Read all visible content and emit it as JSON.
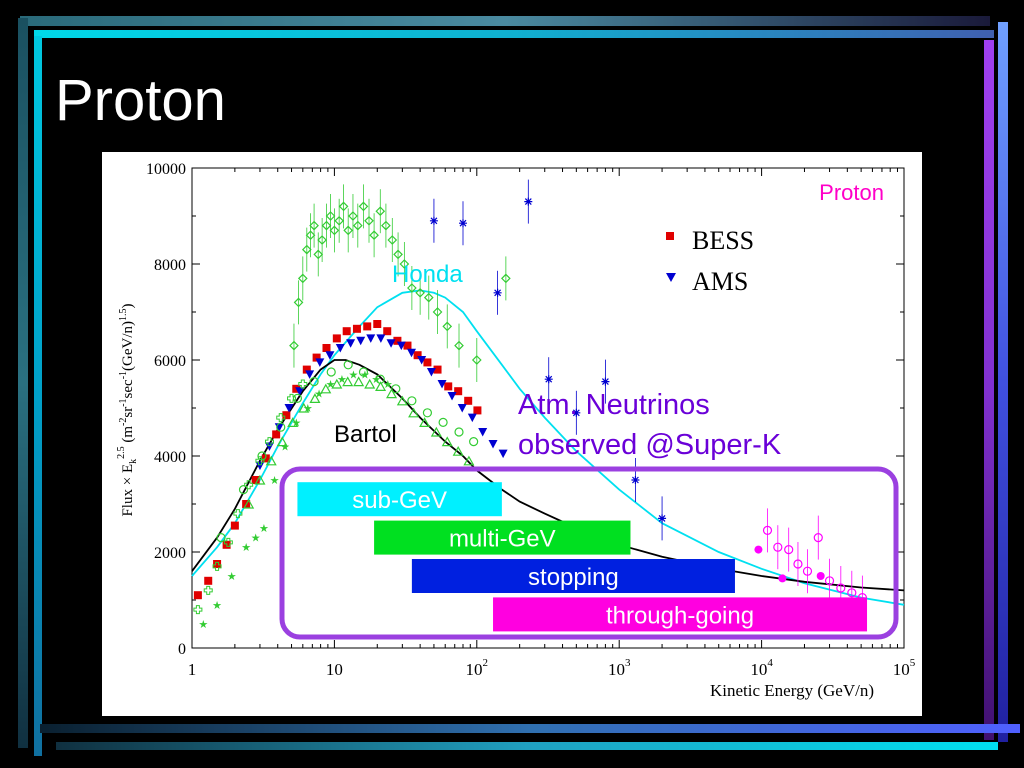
{
  "slide": {
    "title": "Proton"
  },
  "colors": {
    "background": "#000000",
    "accent_cyan": "#00e0ff",
    "accent_blue": "#5060ff",
    "accent_purple": "#8a2be2",
    "bess": "#e00000",
    "ams": "#0000d0",
    "other_data": "#33cc33",
    "high_energy_data": "#ff00ff",
    "honda": "#00e0f0",
    "bartol": "#000000",
    "box_border": "#9b40e0"
  },
  "chart_data": {
    "type": "scatter",
    "title": "Proton",
    "xlabel": "Kinetic Energy (GeV/n)",
    "ylabel": "Flux × E_k^2.5 (m^-2 sr^-1 sec^-1 (GeV/n)^1.5)",
    "x_scale": "log",
    "xlim": [
      1,
      100000
    ],
    "ylim": [
      0,
      10000
    ],
    "x_ticks": [
      {
        "value": 1,
        "base": "1",
        "exp": ""
      },
      {
        "value": 10,
        "base": "10",
        "exp": ""
      },
      {
        "value": 100,
        "base": "10",
        "exp": "2"
      },
      {
        "value": 1000,
        "base": "10",
        "exp": "3"
      },
      {
        "value": 10000,
        "base": "10",
        "exp": "4"
      },
      {
        "value": 100000,
        "base": "10",
        "exp": "5"
      }
    ],
    "y_ticks": [
      0,
      2000,
      4000,
      6000,
      8000,
      10000
    ],
    "legend": {
      "placement": "top-right",
      "entries": [
        {
          "name": "BESS",
          "marker": "square",
          "color": "#e00000"
        },
        {
          "name": "AMS",
          "marker": "triangle-down",
          "color": "#0000d0"
        }
      ]
    },
    "series": [
      {
        "name": "BESS",
        "marker": "square",
        "color": "#e00000",
        "x": [
          1.1,
          1.3,
          1.5,
          1.75,
          2.0,
          2.4,
          2.8,
          3.3,
          3.9,
          4.6,
          5.4,
          6.4,
          7.5,
          8.8,
          10.4,
          12.2,
          14.4,
          17,
          20,
          23.5,
          27.7,
          32.6,
          38.4,
          45,
          53,
          63,
          74,
          87,
          101
        ],
        "y": [
          1100,
          1400,
          1750,
          2150,
          2550,
          3000,
          3500,
          3950,
          4450,
          4850,
          5400,
          5800,
          6050,
          6250,
          6450,
          6600,
          6650,
          6700,
          6750,
          6600,
          6400,
          6300,
          6100,
          5950,
          5800,
          5450,
          5350,
          5150,
          4950
        ]
      },
      {
        "name": "AMS",
        "marker": "triangle-down",
        "color": "#0000d0",
        "x": [
          3.0,
          3.5,
          4.1,
          4.8,
          5.7,
          6.7,
          7.9,
          9.3,
          11,
          13,
          15.3,
          18,
          21.2,
          25,
          29.5,
          34.8,
          41,
          48,
          57,
          67,
          79,
          93,
          110,
          130,
          153
        ],
        "y": [
          3800,
          4200,
          4600,
          5000,
          5350,
          5700,
          5950,
          6100,
          6250,
          6350,
          6400,
          6450,
          6450,
          6350,
          6300,
          6150,
          6000,
          5750,
          5500,
          5250,
          5000,
          4800,
          4500,
          4250,
          4050
        ]
      },
      {
        "name": "",
        "marker": "diamond-open",
        "color": "#33cc33",
        "x": [
          5.2,
          5.6,
          6.0,
          6.4,
          6.8,
          7.2,
          7.7,
          8.2,
          8.8,
          9.4,
          10,
          10.8,
          11.6,
          12.5,
          13.5,
          14.6,
          16,
          17.5,
          19,
          21,
          23,
          25.5,
          28,
          31,
          35,
          40,
          46,
          53,
          62,
          75,
          100,
          160
        ],
        "y": [
          6300,
          7200,
          7700,
          8300,
          8600,
          8800,
          8200,
          8500,
          8800,
          9000,
          8700,
          8900,
          9200,
          8700,
          9000,
          8800,
          9200,
          8900,
          8600,
          9100,
          8800,
          8500,
          8200,
          8000,
          7500,
          7400,
          7300,
          7000,
          6700,
          6300,
          6000,
          7700
        ]
      },
      {
        "name": "",
        "marker": "circle-open",
        "color": "#33cc33",
        "x": [
          1.6,
          2.3,
          3.1,
          4.2,
          5.5,
          7.2,
          9.5,
          12.5,
          16,
          21,
          27,
          35,
          45,
          58,
          75,
          95
        ],
        "y": [
          2300,
          3300,
          4000,
          4600,
          5200,
          5550,
          5750,
          5900,
          5750,
          5600,
          5400,
          5150,
          4900,
          4700,
          4500,
          4300
        ]
      },
      {
        "name": "",
        "marker": "triangle-open",
        "color": "#33cc33",
        "x": [
          2.5,
          3.0,
          3.6,
          4.3,
          5.1,
          6.1,
          7.3,
          8.7,
          10.4,
          12.4,
          14.8,
          17.7,
          21.1,
          25.2,
          30,
          36,
          43,
          52,
          62,
          74,
          88
        ],
        "y": [
          3000,
          3500,
          3900,
          4300,
          4700,
          5000,
          5200,
          5400,
          5500,
          5550,
          5550,
          5500,
          5450,
          5300,
          5150,
          4900,
          4700,
          4500,
          4300,
          4100,
          3900
        ]
      },
      {
        "name": "",
        "marker": "cross-open",
        "color": "#33cc33",
        "x": [
          1.1,
          1.3,
          1.5,
          1.8,
          2.1,
          2.5,
          3.0,
          3.5,
          4.2,
          5.0,
          6.0
        ],
        "y": [
          800,
          1200,
          1700,
          2200,
          2800,
          3400,
          3900,
          4300,
          4800,
          5200,
          5500
        ]
      },
      {
        "name": "",
        "marker": "star",
        "color": "#33cc33",
        "x": [
          1.2,
          1.5,
          1.9,
          2.4,
          2.8,
          3.2,
          3.8,
          4.5,
          5.4,
          6.5,
          7.8,
          9.4,
          11.3,
          13.6,
          16.4,
          19.7,
          23.7
        ],
        "y": [
          500,
          900,
          1500,
          2100,
          2300,
          2500,
          3500,
          4200,
          4700,
          5000,
          5300,
          5500,
          5600,
          5700,
          5700,
          5600,
          5500
        ]
      },
      {
        "name": "",
        "marker": "asterisk",
        "color": "#0000d0",
        "x": [
          50,
          80,
          140,
          230,
          320,
          500,
          800,
          1300,
          2000
        ],
        "y": [
          8900,
          8850,
          7400,
          9300,
          5600,
          4900,
          5550,
          3500,
          2700
        ]
      },
      {
        "name": "",
        "marker": "circle-open",
        "color": "#ff00ff",
        "x": [
          11000,
          13000,
          15500,
          18000,
          21000,
          25000,
          30000,
          36000,
          43000,
          51000
        ],
        "y": [
          2450,
          2100,
          2050,
          1750,
          1600,
          2300,
          1400,
          1250,
          1150,
          1050
        ]
      },
      {
        "name": "",
        "marker": "circle",
        "color": "#ff00ff",
        "x": [
          9500,
          14000,
          26000
        ],
        "y": [
          2050,
          1450,
          1500
        ]
      }
    ],
    "curves": [
      {
        "name": "Honda",
        "color": "#00e0f0",
        "x": [
          1,
          1.5,
          2,
          3,
          4,
          6,
          8,
          10,
          15,
          20,
          30,
          40,
          50,
          60,
          80,
          100,
          150,
          200,
          300,
          500,
          1000,
          2000,
          5000,
          10000,
          20000,
          50000,
          100000
        ],
        "y": [
          1500,
          2100,
          2600,
          3500,
          4200,
          5100,
          5700,
          6100,
          6700,
          7100,
          7400,
          7450,
          7400,
          7300,
          7000,
          6600,
          5900,
          5400,
          4800,
          4100,
          3300,
          2600,
          2000,
          1650,
          1350,
          1050,
          900
        ]
      },
      {
        "name": "Bartol",
        "color": "#000000",
        "x": [
          1,
          1.5,
          2,
          3,
          4,
          6,
          8,
          10,
          12,
          15,
          20,
          30,
          40,
          60,
          80,
          100,
          150,
          200,
          300,
          500,
          1000,
          2000,
          5000,
          10000,
          20000,
          50000,
          100000
        ],
        "y": [
          1600,
          2300,
          2900,
          3900,
          4550,
          5350,
          5800,
          6000,
          6000,
          5900,
          5700,
          5200,
          4800,
          4300,
          4000,
          3700,
          3300,
          3050,
          2800,
          2500,
          2150,
          1900,
          1650,
          1500,
          1380,
          1260,
          1200
        ]
      }
    ],
    "annotations": {
      "honda_label": "Honda",
      "bartol_label": "Bartol",
      "neutrino_line1": "Atm. Neutrinos",
      "neutrino_line2": "observed @Super-K",
      "bands": [
        {
          "label": "sub-GeV",
          "color": "#00f0ff",
          "x_from": 5.5,
          "x_to": 150,
          "y": 3100
        },
        {
          "label": "multi-GeV",
          "color": "#00e020",
          "x_from": 19,
          "x_to": 1200,
          "y": 2300
        },
        {
          "label": "stopping",
          "color": "#0020e0",
          "x_from": 35,
          "x_to": 6500,
          "y": 1500
        },
        {
          "label": "through-going",
          "color": "#ff00e0",
          "x_from": 130,
          "x_to": 55000,
          "y": 700
        }
      ]
    }
  }
}
